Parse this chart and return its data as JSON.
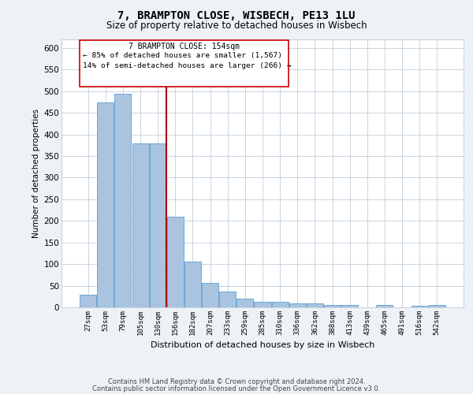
{
  "title1": "7, BRAMPTON CLOSE, WISBECH, PE13 1LU",
  "title2": "Size of property relative to detached houses in Wisbech",
  "xlabel": "Distribution of detached houses by size in Wisbech",
  "ylabel": "Number of detached properties",
  "categories": [
    "27sqm",
    "53sqm",
    "79sqm",
    "105sqm",
    "130sqm",
    "156sqm",
    "182sqm",
    "207sqm",
    "233sqm",
    "259sqm",
    "285sqm",
    "310sqm",
    "336sqm",
    "362sqm",
    "388sqm",
    "413sqm",
    "439sqm",
    "465sqm",
    "491sqm",
    "516sqm",
    "542sqm"
  ],
  "values": [
    30,
    475,
    495,
    380,
    380,
    210,
    105,
    57,
    37,
    20,
    13,
    13,
    10,
    10,
    5,
    5,
    0,
    5,
    0,
    4,
    5
  ],
  "bar_color": "#aac4e0",
  "bar_edge_color": "#5a9fd4",
  "vline_index": 5,
  "annotation_title": "7 BRAMPTON CLOSE: 154sqm",
  "annotation_line1": "← 85% of detached houses are smaller (1,567)",
  "annotation_line2": "14% of semi-detached houses are larger (266) →",
  "ylim": [
    0,
    620
  ],
  "yticks": [
    0,
    50,
    100,
    150,
    200,
    250,
    300,
    350,
    400,
    450,
    500,
    550,
    600
  ],
  "footnote1": "Contains HM Land Registry data © Crown copyright and database right 2024.",
  "footnote2": "Contains public sector information licensed under the Open Government Licence v3.0.",
  "bg_color": "#eef2f7",
  "plot_bg_color": "#ffffff",
  "grid_color": "#c8d4e0"
}
